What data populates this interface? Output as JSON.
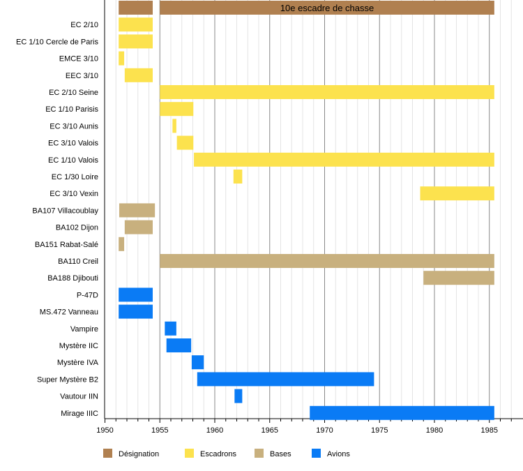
{
  "chart_data": {
    "type": "timeline",
    "title": "",
    "xlim": [
      1950,
      1987.8
    ],
    "x_ticks": [
      1950,
      1955,
      1960,
      1965,
      1970,
      1975,
      1980,
      1985
    ],
    "grid": "vertical, yearly",
    "legend_placement": "bottom",
    "colors": {
      "Désignation": "#b08050",
      "Escadrons": "#fce24e",
      "Bases": "#c8b07e",
      "Avions": "#0a7bf5"
    },
    "legend": [
      "Désignation",
      "Escadrons",
      "Bases",
      "Avions"
    ],
    "rows": [
      {
        "label": "",
        "category": "Désignation",
        "bars": [
          {
            "start": 1951.25,
            "end": 1954.35
          },
          {
            "start": 1955.0,
            "end": 1985.45,
            "text": "10e escadre de chasse"
          }
        ]
      },
      {
        "label": "EC 2/10",
        "category": "Escadrons",
        "bars": [
          {
            "start": 1951.25,
            "end": 1954.35
          }
        ]
      },
      {
        "label": "EC 1/10 Cercle de Paris",
        "category": "Escadrons",
        "bars": [
          {
            "start": 1951.25,
            "end": 1954.35
          }
        ]
      },
      {
        "label": "EMCE 3/10",
        "category": "Escadrons",
        "bars": [
          {
            "start": 1951.25,
            "end": 1951.75
          }
        ]
      },
      {
        "label": "EEC 3/10",
        "category": "Escadrons",
        "bars": [
          {
            "start": 1951.8,
            "end": 1954.35
          }
        ]
      },
      {
        "label": "EC 2/10 Seine",
        "category": "Escadrons",
        "bars": [
          {
            "start": 1955.0,
            "end": 1985.45
          }
        ]
      },
      {
        "label": "EC 1/10 Parisis",
        "category": "Escadrons",
        "bars": [
          {
            "start": 1955.0,
            "end": 1958.05
          }
        ]
      },
      {
        "label": "EC 3/10 Aunis",
        "category": "Escadrons",
        "bars": [
          {
            "start": 1956.15,
            "end": 1956.5
          }
        ]
      },
      {
        "label": "EC 3/10 Valois",
        "category": "Escadrons",
        "bars": [
          {
            "start": 1956.55,
            "end": 1958.05
          }
        ]
      },
      {
        "label": "EC 1/10 Valois",
        "category": "Escadrons",
        "bars": [
          {
            "start": 1958.1,
            "end": 1985.45
          }
        ]
      },
      {
        "label": "EC 1/30 Loire",
        "category": "Escadrons",
        "bars": [
          {
            "start": 1961.7,
            "end": 1962.5
          }
        ]
      },
      {
        "label": "EC 3/10 Vexin",
        "category": "Escadrons",
        "bars": [
          {
            "start": 1978.7,
            "end": 1985.45
          }
        ]
      },
      {
        "label": "BA107 Villacoublay",
        "category": "Bases",
        "bars": [
          {
            "start": 1951.3,
            "end": 1954.55
          }
        ]
      },
      {
        "label": "BA102 Dijon",
        "category": "Bases",
        "bars": [
          {
            "start": 1951.8,
            "end": 1954.35
          }
        ]
      },
      {
        "label": "BA151 Rabat-Salé",
        "category": "Bases",
        "bars": [
          {
            "start": 1951.25,
            "end": 1951.75
          }
        ]
      },
      {
        "label": "BA110 Creil",
        "category": "Bases",
        "bars": [
          {
            "start": 1955.0,
            "end": 1985.45
          }
        ]
      },
      {
        "label": "BA188 Djibouti",
        "category": "Bases",
        "bars": [
          {
            "start": 1979.0,
            "end": 1985.45
          }
        ]
      },
      {
        "label": "P-47D",
        "category": "Avions",
        "bars": [
          {
            "start": 1951.25,
            "end": 1954.35
          }
        ]
      },
      {
        "label": "MS.472 Vanneau",
        "category": "Avions",
        "bars": [
          {
            "start": 1951.25,
            "end": 1954.35
          }
        ]
      },
      {
        "label": "Vampire",
        "category": "Avions",
        "bars": [
          {
            "start": 1955.45,
            "end": 1956.5
          }
        ]
      },
      {
        "label": "Mystère IIC",
        "category": "Avions",
        "bars": [
          {
            "start": 1955.6,
            "end": 1957.85
          }
        ]
      },
      {
        "label": "Mystère IVA",
        "category": "Avions",
        "bars": [
          {
            "start": 1957.9,
            "end": 1959.0
          }
        ]
      },
      {
        "label": "Super Mystère B2",
        "category": "Avions",
        "bars": [
          {
            "start": 1958.4,
            "end": 1974.5
          }
        ]
      },
      {
        "label": "Vautour IIN",
        "category": "Avions",
        "bars": [
          {
            "start": 1961.8,
            "end": 1962.5
          }
        ]
      },
      {
        "label": "Mirage IIIC",
        "category": "Avions",
        "bars": [
          {
            "start": 1968.65,
            "end": 1985.45
          }
        ]
      }
    ]
  }
}
